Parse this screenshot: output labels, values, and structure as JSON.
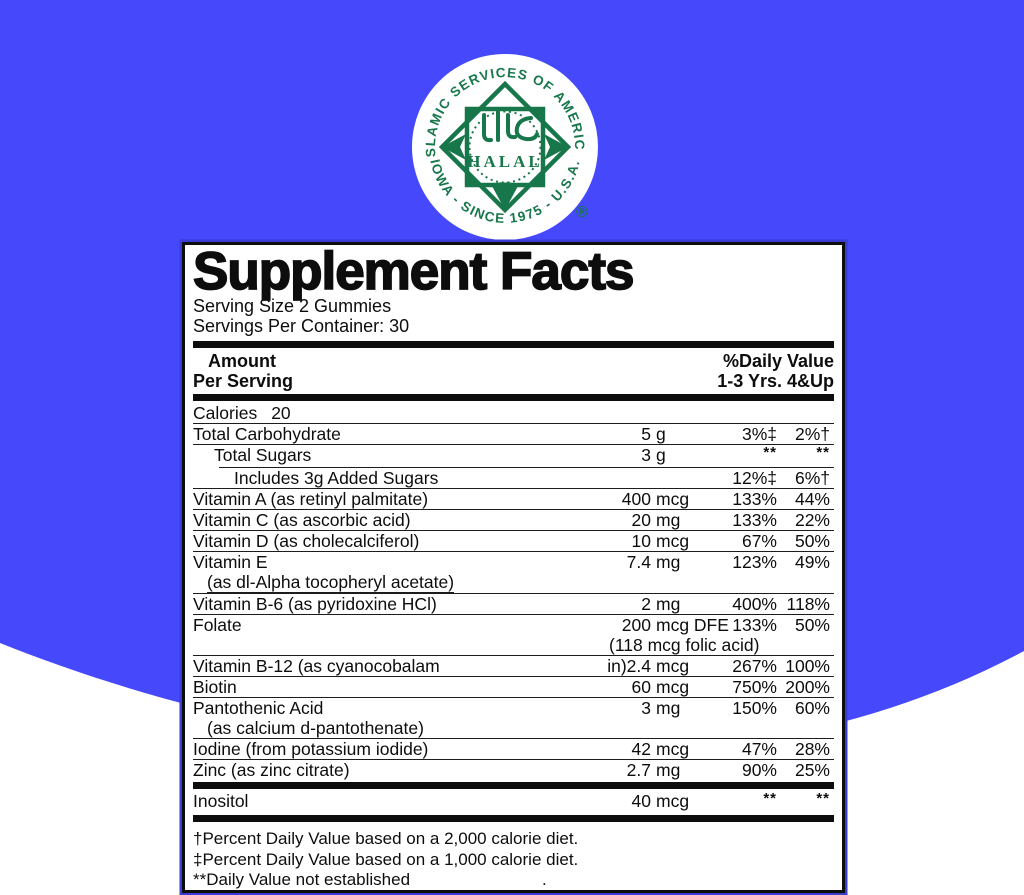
{
  "colors": {
    "background_blue": "#4548fb",
    "logo_green": "#17774a",
    "text_black": "#0d0d0d",
    "panel_white": "#ffffff"
  },
  "logo": {
    "top_text": "ISLAMIC SERVICES OF AMERICA",
    "bottom_text": "IOWA - SINCE 1975 - U.S.A.",
    "center_word": "HALAL",
    "arabic_word": "حلال",
    "registered_mark": "®"
  },
  "panel": {
    "title": "Supplement Facts",
    "serving_size": "Serving Size 2 Gummies",
    "servings_per_container": "Servings Per Container: 30",
    "header": {
      "amount_line1": "Amount",
      "amount_line2": "Per Serving",
      "dv_line1": "%Daily Value",
      "dv_line2": "1-3 Yrs. 4&Up"
    },
    "rows": [
      {
        "name": "Calories",
        "inline_value": "20",
        "sep": "thin"
      },
      {
        "name": "Total Carbohydrate",
        "value": "5",
        "unit": "g",
        "dv1": "3%‡",
        "dv2": "2%†",
        "sep": "thin"
      },
      {
        "name": "Total Sugars",
        "indent": 1,
        "value": "3",
        "unit": "g",
        "dv1": "**",
        "dv2": "**",
        "sep": "thin-indent"
      },
      {
        "name": "Includes 3g Added Sugars",
        "indent": 2,
        "dv1": "12%‡",
        "dv2": "6%†",
        "sep": "thin"
      },
      {
        "name": "Vitamin A (as retinyl palmitate)",
        "value": "400",
        "unit": "mcg",
        "dv1": "133%",
        "dv2": "44%",
        "sep": "thin"
      },
      {
        "name": "Vitamin C (as ascorbic acid)",
        "value": "20",
        "unit": "mg",
        "dv1": "133%",
        "dv2": "22%",
        "sep": "thin"
      },
      {
        "name": "Vitamin D (as cholecalciferol)",
        "value": "10",
        "unit": "mcg",
        "dv1": "67%",
        "dv2": "50%",
        "sep": "thin"
      },
      {
        "name": "Vitamin E",
        "value": "7.4",
        "unit": "mg",
        "dv1": "123%",
        "dv2": "49%",
        "line2": "(as dl-Alpha tocopheryl acetate)",
        "line2_style": "underlined",
        "sep": "thin"
      },
      {
        "name": "Vitamin B-6 (as pyridoxine HCl)",
        "value": "2",
        "unit": "mg",
        "dv1": "400%",
        "dv2": "118%",
        "sep": "thin"
      },
      {
        "name": "Folate",
        "value": "200",
        "unit": "mcg DFE",
        "dv1": "133%",
        "dv2": "50%",
        "line2": "(118 mcg folic acid)",
        "line2_style": "amount-col",
        "sep": "thin"
      },
      {
        "name": "Vitamin B-12 (as cyanocobalam",
        "value": "in)2.4",
        "unit": "mcg",
        "dv1": "267%",
        "dv2": "100%",
        "sep": "thin"
      },
      {
        "name": "Biotin",
        "value": "60",
        "unit": "mcg",
        "dv1": "750%",
        "dv2": "200%",
        "sep": "thin"
      },
      {
        "name": "Pantothenic Acid",
        "value": "3",
        "unit": "mg",
        "dv1": "150%",
        "dv2": "60%",
        "line2": "(as calcium d-pantothenate)",
        "line2_style": "plain",
        "sep": "thin"
      },
      {
        "name": "Iodine (from potassium iodide)",
        "value": "42",
        "unit": "mcg",
        "dv1": "47%",
        "dv2": "28%",
        "sep": "thin"
      },
      {
        "name": "Zinc (as zinc citrate)",
        "value": "2.7",
        "unit": "mg",
        "dv1": "90%",
        "dv2": "25%",
        "sep": "thick"
      },
      {
        "name": "Inositol",
        "value": "40",
        "unit": "mcg",
        "dv1": "**",
        "dv2": "**",
        "sep": "thick"
      }
    ],
    "footnotes": [
      {
        "text": "†Percent Daily Value based on a 2,000 calorie diet."
      },
      {
        "text": "‡Percent Daily Value based on a 1,000 calorie diet."
      },
      {
        "text": "**Daily Value not established",
        "trailing": "."
      }
    ]
  }
}
